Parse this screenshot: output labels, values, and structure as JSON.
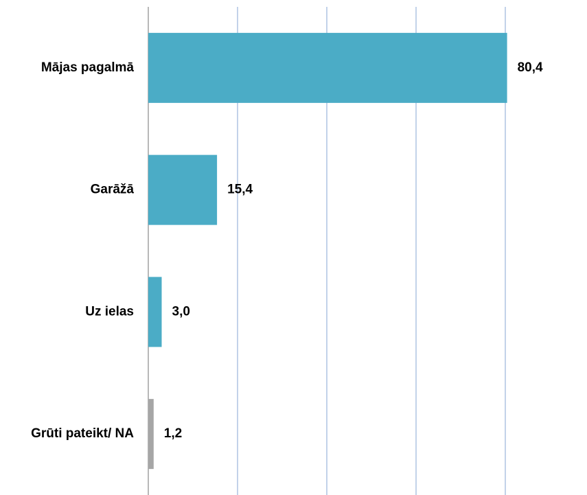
{
  "chart_data": {
    "type": "hbar",
    "categories": [
      "Mājas pagalmā",
      "Garāžā",
      "Uz ielas",
      "Grūti pateikt/ NA"
    ],
    "values": [
      80.4,
      15.4,
      3.0,
      1.2
    ],
    "value_labels": [
      "80,4",
      "15,4",
      "3,0",
      "1,2"
    ],
    "colors": [
      "#4bacc6",
      "#4bacc6",
      "#4bacc6",
      "#a6a6a6"
    ],
    "xlim": [
      0,
      80
    ],
    "xticks": [
      0,
      20,
      40,
      60,
      80
    ],
    "grid": true
  }
}
